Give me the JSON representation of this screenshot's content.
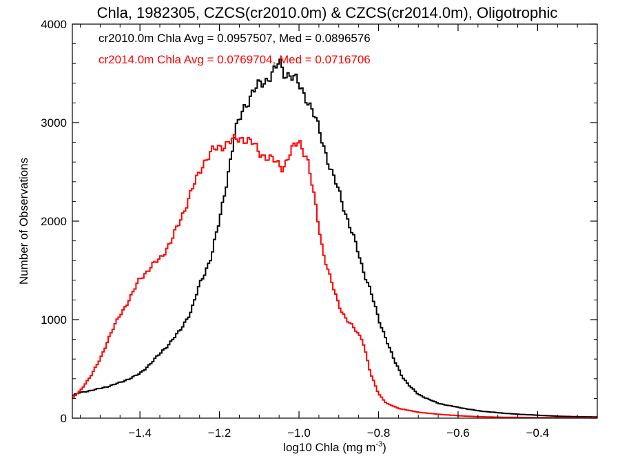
{
  "chart_data": {
    "type": "line",
    "title": "Chla, 1982305, CZCS(cr2010.0m) & CZCS(cr2014.0m), Oligotrophic",
    "xlabel": "log10 Chla (mg m",
    "xlabel_sup": "-3",
    "xlabel_end": ")",
    "ylabel": "Number of Observations",
    "xlim": [
      -1.57,
      -0.25
    ],
    "ylim": [
      0,
      4000
    ],
    "xticks": [
      -1.4,
      -1.2,
      -1.0,
      -0.8,
      -0.6,
      -0.4
    ],
    "xtick_labels": [
      "−1.4",
      "−1.2",
      "−1.0",
      "−0.8",
      "−0.6",
      "−0.4"
    ],
    "yticks": [
      0,
      1000,
      2000,
      3000,
      4000
    ],
    "ytick_labels": [
      "0",
      "1000",
      "2000",
      "3000",
      "4000"
    ],
    "grid": false,
    "annotations": [
      {
        "text": "cr2010.0m Chla Avg = 0.0957507, Med = 0.0896576",
        "color": "#000000"
      },
      {
        "text": "cr2014.0m Chla Avg = 0.0769704, Med = 0.0716706",
        "color": "#ff0000"
      }
    ],
    "series": [
      {
        "color": "#000000",
        "x": [
          -1.57,
          -1.55,
          -1.5,
          -1.45,
          -1.4,
          -1.35,
          -1.3,
          -1.27,
          -1.25,
          -1.22,
          -1.2,
          -1.18,
          -1.16,
          -1.14,
          -1.12,
          -1.1,
          -1.08,
          -1.06,
          -1.05,
          -1.04,
          -1.02,
          -1.0,
          -0.98,
          -0.96,
          -0.94,
          -0.92,
          -0.9,
          -0.88,
          -0.86,
          -0.84,
          -0.82,
          -0.8,
          -0.78,
          -0.76,
          -0.74,
          -0.72,
          -0.7,
          -0.65,
          -0.6,
          -0.55,
          -0.5,
          -0.45,
          -0.4,
          -0.35,
          -0.3,
          -0.25
        ],
        "y": [
          230,
          260,
          300,
          360,
          450,
          650,
          880,
          1100,
          1350,
          1650,
          2000,
          2450,
          2900,
          3150,
          3280,
          3380,
          3450,
          3520,
          3620,
          3520,
          3480,
          3380,
          3250,
          3050,
          2800,
          2520,
          2300,
          2050,
          1800,
          1520,
          1300,
          1000,
          800,
          580,
          420,
          320,
          240,
          150,
          110,
          75,
          55,
          40,
          30,
          20,
          15,
          12
        ]
      },
      {
        "color": "#ff0000",
        "x": [
          -1.57,
          -1.55,
          -1.52,
          -1.5,
          -1.48,
          -1.45,
          -1.42,
          -1.4,
          -1.38,
          -1.35,
          -1.32,
          -1.3,
          -1.28,
          -1.26,
          -1.24,
          -1.22,
          -1.2,
          -1.18,
          -1.16,
          -1.14,
          -1.12,
          -1.1,
          -1.08,
          -1.06,
          -1.04,
          -1.02,
          -1.0,
          -0.98,
          -0.96,
          -0.94,
          -0.92,
          -0.9,
          -0.88,
          -0.86,
          -0.84,
          -0.82,
          -0.8,
          -0.78,
          -0.75,
          -0.7,
          -0.65,
          -0.6,
          -0.55,
          -0.5,
          -0.45,
          -0.4,
          -0.3,
          -0.25
        ],
        "y": [
          200,
          280,
          450,
          600,
          800,
          1050,
          1250,
          1420,
          1500,
          1620,
          1800,
          2000,
          2200,
          2400,
          2600,
          2700,
          2750,
          2800,
          2820,
          2850,
          2800,
          2700,
          2650,
          2600,
          2550,
          2700,
          2820,
          2650,
          2200,
          1700,
          1400,
          1150,
          1000,
          900,
          800,
          450,
          250,
          150,
          100,
          60,
          40,
          25,
          15,
          10,
          8,
          5,
          5,
          5
        ]
      }
    ]
  }
}
